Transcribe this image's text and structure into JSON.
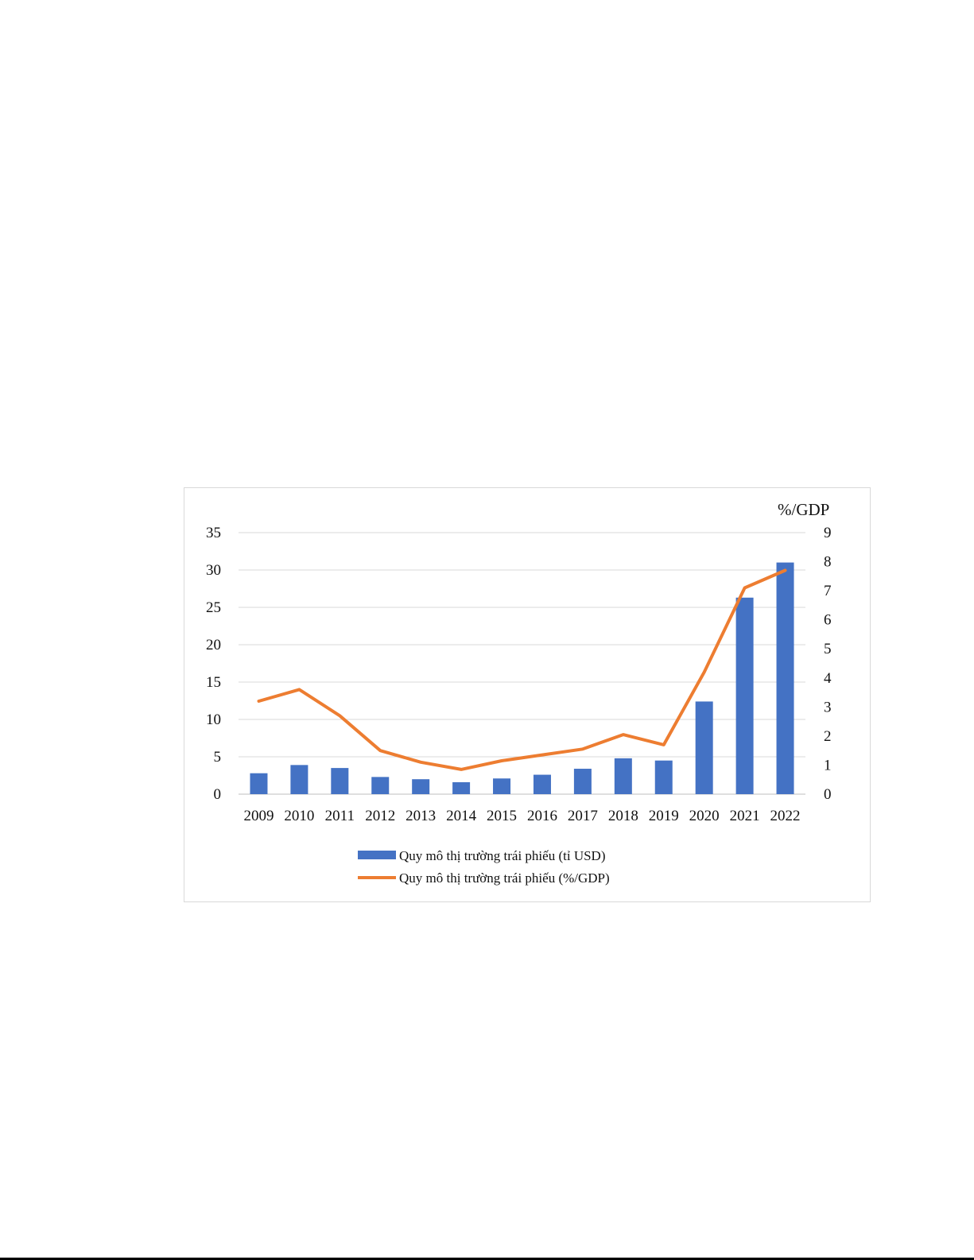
{
  "chart_data": {
    "type": "bar+line",
    "categories": [
      "2009",
      "2010",
      "2011",
      "2012",
      "2013",
      "2014",
      "2015",
      "2016",
      "2017",
      "2018",
      "2019",
      "2020",
      "2021",
      "2022"
    ],
    "series": [
      {
        "name": "Quy mô thị trường trái phiếu (tỉ USD)",
        "type": "bar",
        "axis": "left",
        "color": "#4472c4",
        "values": [
          2.8,
          3.9,
          3.5,
          2.3,
          2.0,
          1.6,
          2.1,
          2.6,
          3.4,
          4.8,
          4.5,
          12.4,
          26.3,
          31.0
        ]
      },
      {
        "name": "Quy mô thị trường trái phiếu (%/GDP)",
        "type": "line",
        "axis": "right",
        "color": "#ed7d31",
        "values": [
          3.2,
          3.6,
          2.7,
          1.5,
          1.1,
          0.85,
          1.15,
          1.35,
          1.55,
          2.05,
          1.7,
          4.2,
          7.1,
          7.7
        ]
      }
    ],
    "y_left": {
      "ticks": [
        "0",
        "5",
        "10",
        "15",
        "20",
        "25",
        "30",
        "35"
      ],
      "lim": [
        0,
        35
      ]
    },
    "y_right": {
      "label": "%/GDP",
      "ticks": [
        "0",
        "1",
        "2",
        "3",
        "4",
        "5",
        "6",
        "7",
        "8",
        "9"
      ],
      "lim": [
        0,
        9
      ]
    },
    "grid": true,
    "legend_position": "bottom"
  }
}
